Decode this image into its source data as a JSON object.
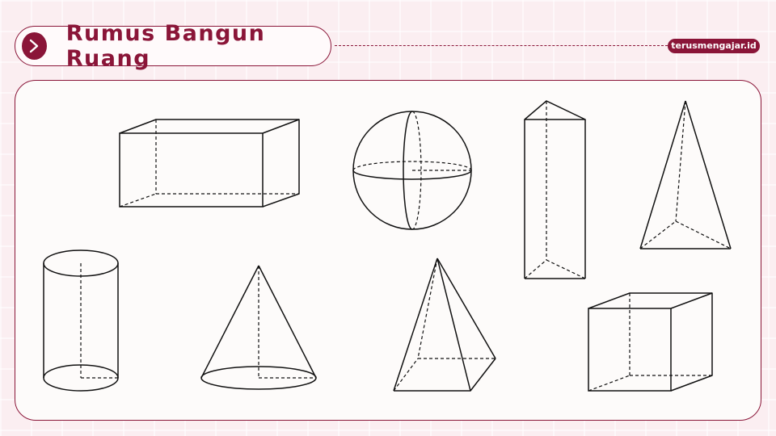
{
  "header": {
    "title": "Rumus Bangun Ruang",
    "icon": "chevron-right-icon",
    "site": "terusmengajar.id"
  },
  "colors": {
    "accent": "#8a1538",
    "background": "#fbeef1",
    "panel": "#fdfbfa",
    "stroke": "#111111"
  },
  "shapes": [
    "cuboid",
    "sphere",
    "triangular-prism",
    "triangular-pyramid",
    "cylinder",
    "cone",
    "square-pyramid",
    "cube"
  ]
}
